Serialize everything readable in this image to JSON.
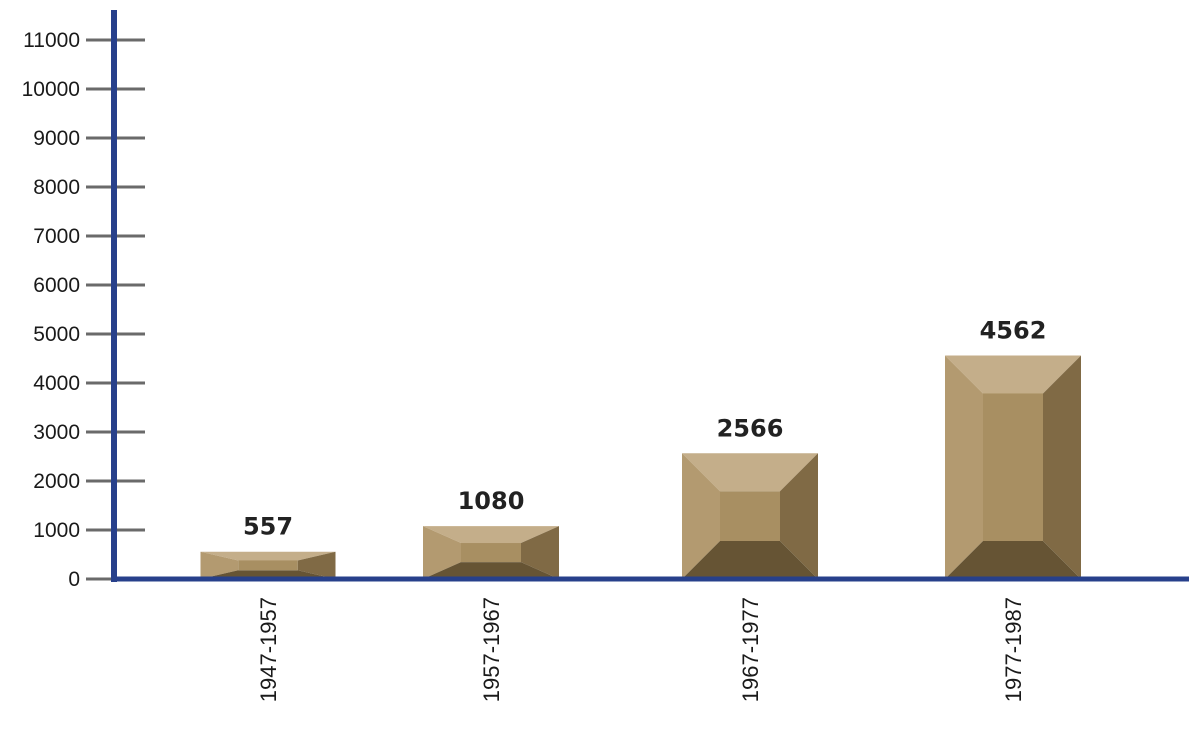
{
  "chart_data": {
    "type": "bar",
    "title": "",
    "xlabel": "",
    "ylabel": "",
    "categories": [
      "1947-1957",
      "1957-1967",
      "1967-1977",
      "1977-1987"
    ],
    "values": [
      557,
      1080,
      2566,
      4562
    ],
    "ylim": [
      0,
      11000
    ],
    "yticks": [
      0,
      1000,
      2000,
      3000,
      4000,
      5000,
      6000,
      7000,
      8000,
      9000,
      10000,
      11000
    ],
    "grid": false,
    "legend": "none",
    "colors": {
      "axis": "#27408b",
      "tick": "#6a6a6a",
      "bar_top": "#c4ae8a",
      "bar_face": "#a88f62",
      "bar_side_left": "#b39a70",
      "bar_side_right": "#806a45",
      "bar_bottom": "#665434"
    }
  }
}
